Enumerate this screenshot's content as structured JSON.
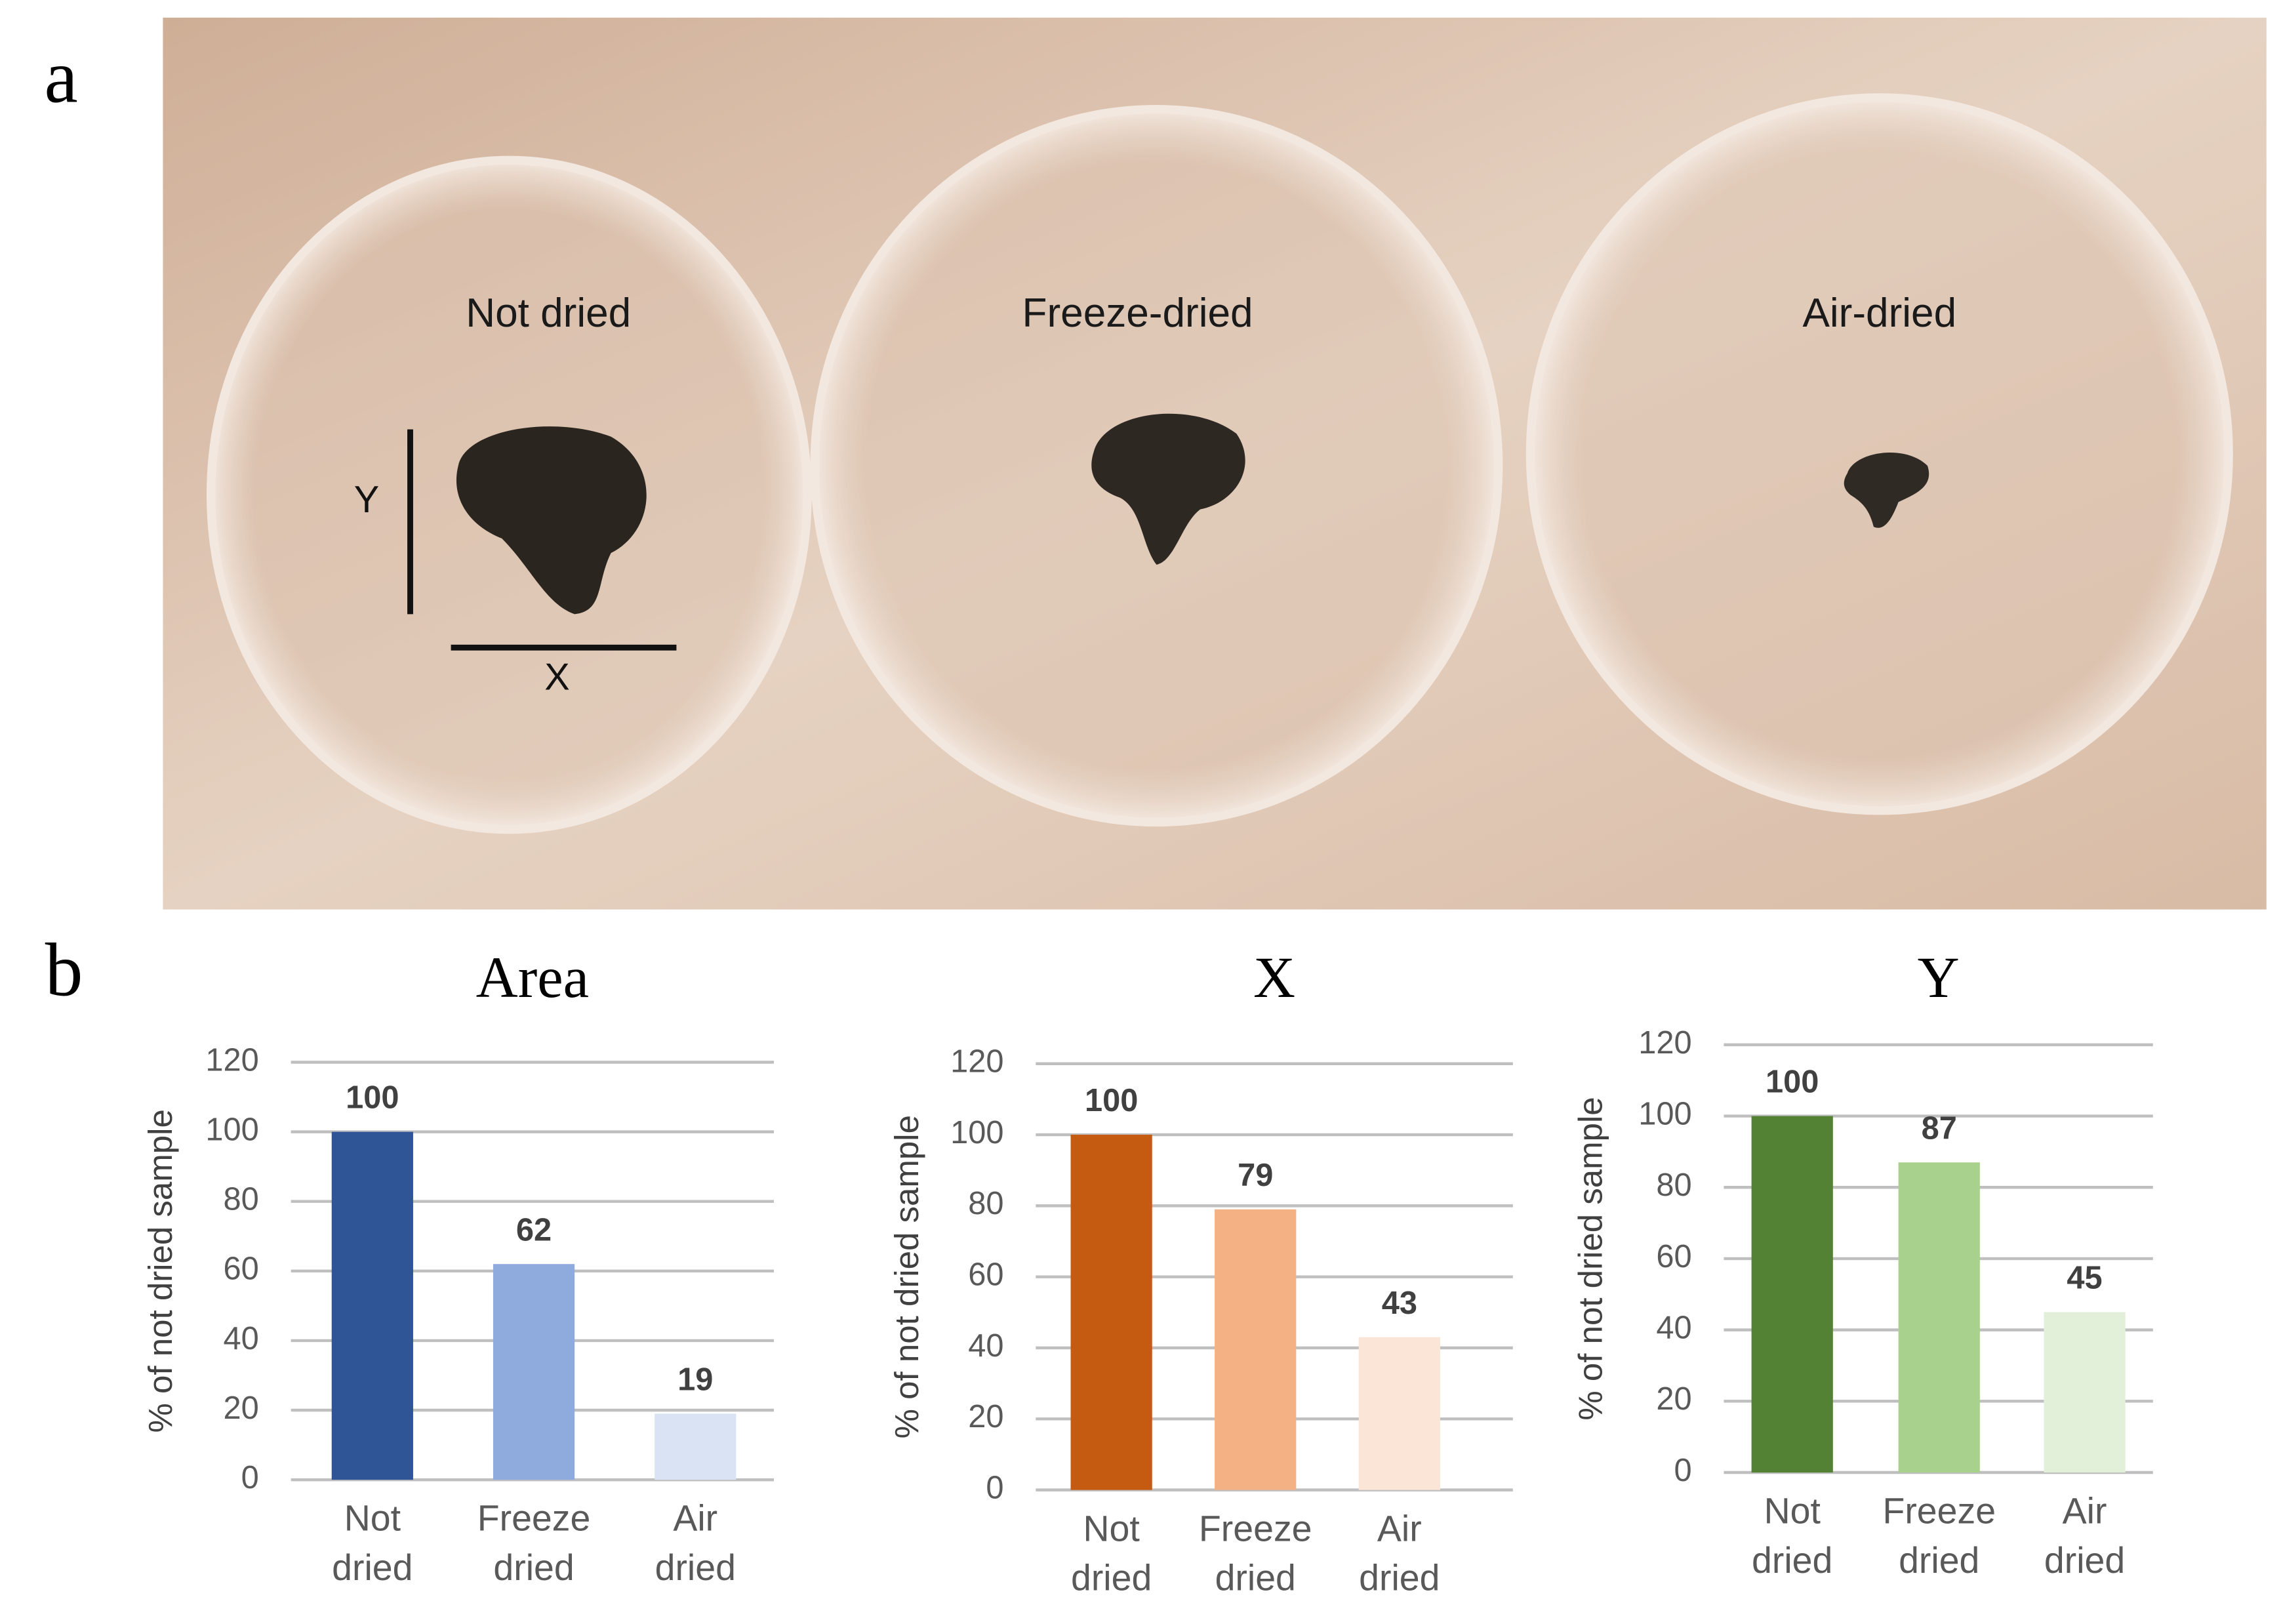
{
  "panel_labels": [
    "a",
    "b"
  ],
  "photo": {
    "sample_labels": [
      "Not dried",
      "Freeze-dried",
      "Air-dried"
    ],
    "dimension_labels": [
      "Y",
      "X"
    ]
  },
  "chart_data": [
    {
      "type": "bar",
      "title": "Area",
      "y_label": "% of not dried sample",
      "categories": [
        "Not dried",
        "Freeze dried",
        "Air dried"
      ],
      "values": [
        100,
        62,
        19
      ],
      "colors": [
        "#2f5597",
        "#8faadc",
        "#dae3f3"
      ],
      "ylim": [
        0,
        120
      ],
      "yticks": [
        0,
        20,
        40,
        60,
        80,
        100,
        120
      ],
      "grid": true
    },
    {
      "type": "bar",
      "title": "X",
      "y_label": "% of not dried sample",
      "categories": [
        "Not dried",
        "Freeze dried",
        "Air dried"
      ],
      "values": [
        100,
        79,
        43
      ],
      "colors": [
        "#c55a11",
        "#f4b183",
        "#fbe5d6"
      ],
      "ylim": [
        0,
        120
      ],
      "yticks": [
        0,
        20,
        40,
        60,
        80,
        100,
        120
      ],
      "grid": true
    },
    {
      "type": "bar",
      "title": "Y",
      "y_label": "% of not dried sample",
      "categories": [
        "Not dried",
        "Freeze dried",
        "Air dried"
      ],
      "values": [
        100,
        87,
        45
      ],
      "colors": [
        "#548235",
        "#a9d18e",
        "#e2f0d9"
      ],
      "ylim": [
        0,
        120
      ],
      "yticks": [
        0,
        20,
        40,
        60,
        80,
        100,
        120
      ],
      "grid": true
    }
  ]
}
